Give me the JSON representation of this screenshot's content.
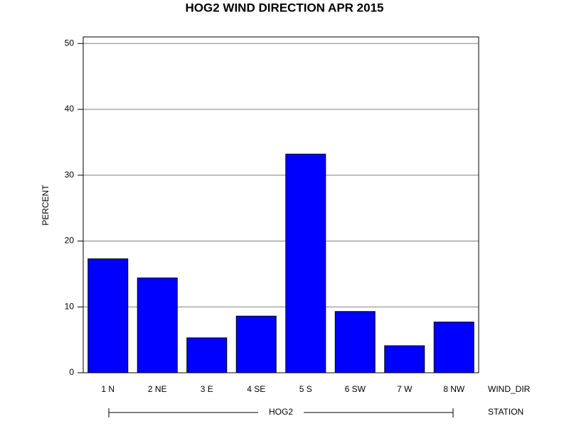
{
  "chart_data": {
    "type": "bar",
    "title": "HOG2 WIND DIRECTION APR 2015",
    "y_label": "PERCENT",
    "x_label": "WIND_DIR",
    "group_label": "STATION",
    "group": "HOG2",
    "categories": [
      "1 N",
      "2 NE",
      "3 E",
      "4 SE",
      "5 S",
      "6 SW",
      "7 W",
      "8 NW"
    ],
    "values": [
      17.3,
      14.4,
      5.3,
      8.6,
      33.2,
      9.3,
      4.1,
      7.7
    ],
    "color": "#0000ff",
    "ylim": [
      0,
      51
    ],
    "yticks": [
      0,
      10,
      20,
      30,
      40,
      50
    ],
    "grid": true
  }
}
